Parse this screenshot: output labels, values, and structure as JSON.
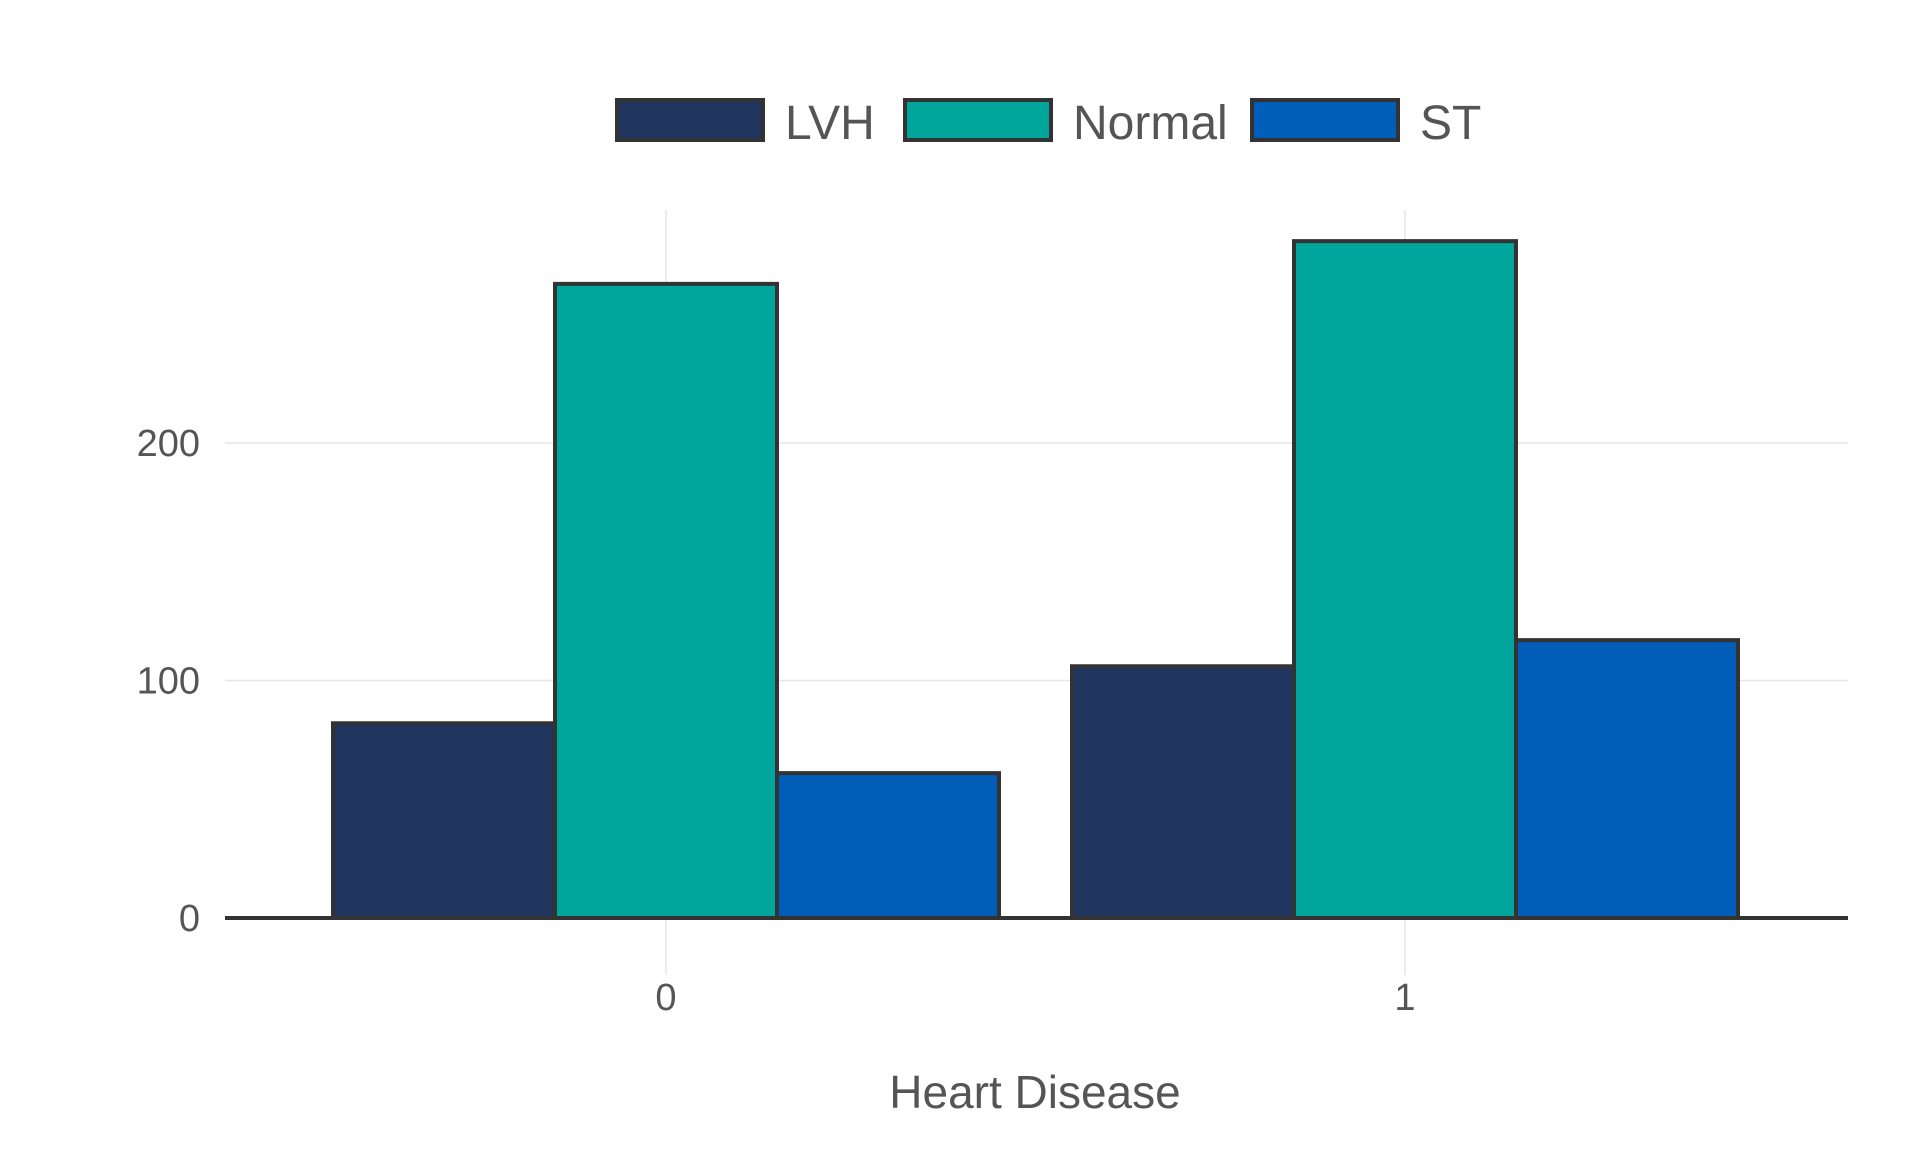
{
  "chart_data": {
    "type": "bar",
    "categories": [
      "0",
      "1"
    ],
    "series": [
      {
        "name": "LVH",
        "color": "#1f355e",
        "values": [
          82,
          106
        ]
      },
      {
        "name": "Normal",
        "color": "#00a59b",
        "values": [
          267,
          285
        ]
      },
      {
        "name": "ST",
        "color": "#005eb8",
        "values": [
          61,
          117
        ]
      }
    ],
    "xlabel": "Heart Disease",
    "ylabel": "",
    "yticks": [
      0,
      100,
      200
    ],
    "ytick_labels": [
      "0",
      "100",
      "200"
    ],
    "ylim": [
      0,
      300
    ],
    "grid": true,
    "legend_position": "top"
  }
}
